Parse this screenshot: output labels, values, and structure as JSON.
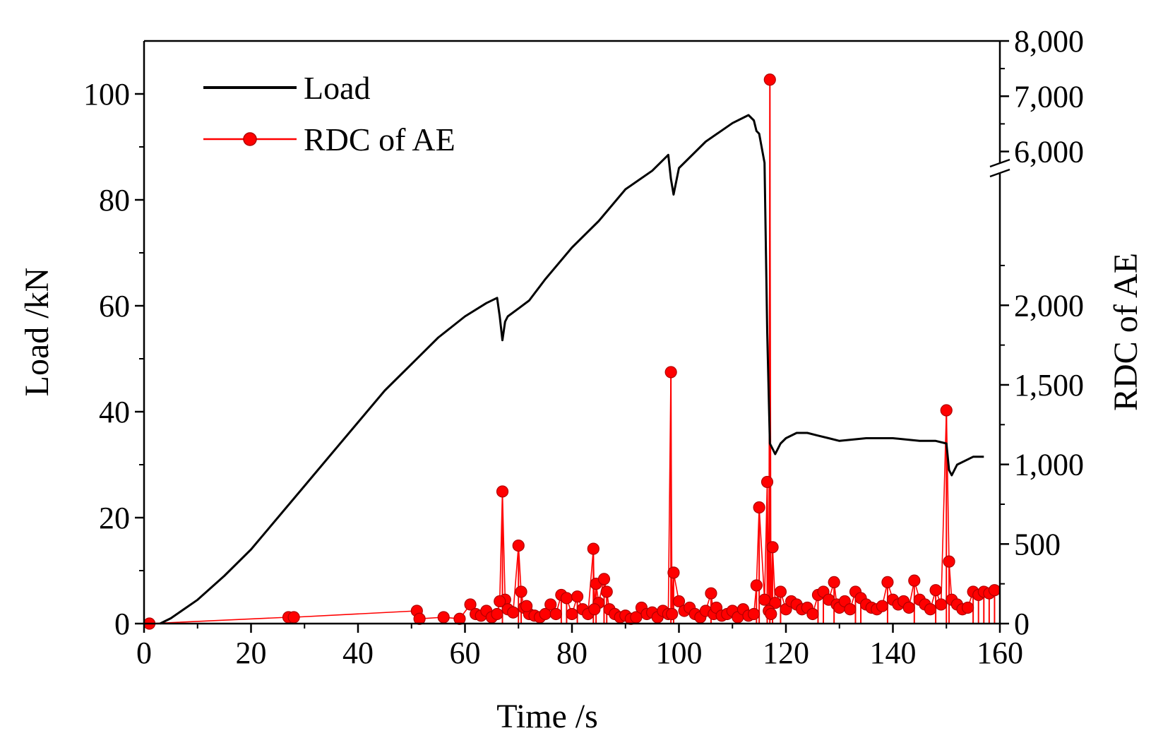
{
  "chart_data": {
    "type": "line",
    "xlabel": "Time /s",
    "ylabel_left": "Load /kN",
    "ylabel_right": "RDC of AE",
    "xlim": [
      0,
      160
    ],
    "ylim_left": [
      0,
      110
    ],
    "ylim_right_lower": [
      0,
      2800
    ],
    "ylim_right_upper": [
      5700,
      8000
    ],
    "x_ticks": [
      "0",
      "20",
      "40",
      "60",
      "80",
      "100",
      "120",
      "140",
      "160"
    ],
    "y_left_ticks": [
      "0",
      "20",
      "40",
      "60",
      "80",
      "100"
    ],
    "y_right_ticks_lower": [
      "0",
      "500",
      "1,000",
      "1,500",
      "2,000"
    ],
    "y_right_ticks_upper": [
      "6,000",
      "7,000",
      "8,000"
    ],
    "legend_position": "top-left",
    "colors": {
      "load": "#000000",
      "rdc": "#ff0000"
    },
    "series": [
      {
        "name": "Load",
        "axis": "left",
        "color": "#000000",
        "x": [
          3,
          5,
          10,
          15,
          20,
          25,
          30,
          35,
          40,
          45,
          50,
          55,
          60,
          64,
          66,
          66.5,
          67,
          67.5,
          68,
          70,
          72,
          75,
          80,
          85,
          90,
          95,
          97,
          98,
          98.5,
          99,
          100,
          105,
          110,
          113,
          114,
          114.5,
          115,
          116,
          116.5,
          117,
          117.5,
          118,
          119,
          120,
          122,
          124,
          126,
          128,
          130,
          135,
          140,
          145,
          148,
          150,
          150.5,
          151,
          152,
          155,
          157
        ],
        "values": [
          0,
          1,
          4.5,
          9,
          14,
          20,
          26,
          32,
          38,
          44,
          49,
          54,
          58,
          60.5,
          61.5,
          58,
          53.5,
          57,
          58,
          59.5,
          61,
          65,
          71,
          76,
          82,
          85.5,
          87.5,
          88.5,
          84,
          81,
          86,
          91,
          94.5,
          96,
          95,
          93,
          92.5,
          87,
          55,
          34,
          33,
          32,
          34,
          35,
          36,
          36,
          35.5,
          35,
          34.5,
          35,
          35,
          34.5,
          34.5,
          34,
          29,
          28,
          30,
          31.5,
          31.5
        ]
      },
      {
        "name": "RDC of AE",
        "axis": "right",
        "color": "#ff0000",
        "x": [
          1,
          27,
          28,
          51,
          51.5,
          56,
          59,
          61,
          62,
          63,
          64,
          65,
          66,
          67,
          67.5,
          68,
          69,
          70,
          70.5,
          71,
          72,
          73,
          74,
          75,
          76,
          77,
          78,
          79,
          80,
          81,
          82,
          83,
          84,
          84.5,
          85,
          86,
          86.5,
          87,
          88,
          89,
          90,
          91,
          92,
          93,
          94,
          95,
          96,
          97,
          98,
          98.5,
          99,
          100,
          101,
          102,
          103,
          104,
          105,
          106,
          106.5,
          107,
          108,
          109,
          110,
          111,
          112,
          113,
          114,
          114.5,
          115,
          116,
          116.5,
          117,
          117.5,
          118,
          119,
          120,
          121,
          122,
          123,
          124,
          125,
          126,
          127,
          128,
          129,
          129.5,
          130,
          131,
          132,
          133,
          134,
          135,
          136,
          137,
          138,
          139,
          140,
          141,
          142,
          143,
          144,
          145,
          146,
          147,
          148,
          149,
          150,
          150.5,
          151,
          152,
          153,
          154,
          155,
          156,
          157,
          158,
          159,
          66.5,
          71.5,
          84.2,
          98.7,
          116.8,
          117.2
        ],
        "values": [
          0,
          40,
          40,
          80,
          30,
          40,
          30,
          120,
          60,
          50,
          80,
          40,
          60,
          830,
          150,
          90,
          70,
          490,
          200,
          100,
          60,
          50,
          40,
          60,
          120,
          60,
          180,
          160,
          60,
          170,
          90,
          60,
          470,
          250,
          130,
          280,
          200,
          90,
          60,
          40,
          50,
          30,
          40,
          100,
          60,
          70,
          40,
          80,
          60,
          1580,
          320,
          140,
          80,
          100,
          60,
          40,
          80,
          190,
          60,
          100,
          50,
          60,
          80,
          40,
          90,
          50,
          60,
          240,
          730,
          150,
          890,
          7300,
          480,
          130,
          200,
          90,
          140,
          120,
          90,
          100,
          60,
          180,
          200,
          150,
          260,
          120,
          100,
          140,
          90,
          200,
          160,
          120,
          100,
          90,
          110,
          260,
          150,
          120,
          140,
          100,
          270,
          150,
          120,
          90,
          210,
          120,
          1340,
          390,
          150,
          120,
          90,
          100,
          200,
          180,
          200,
          190,
          210,
          140,
          110,
          90,
          60,
          80,
          60
        ]
      }
    ]
  },
  "legend": {
    "load_label": "Load",
    "rdc_label": "RDC of AE"
  }
}
